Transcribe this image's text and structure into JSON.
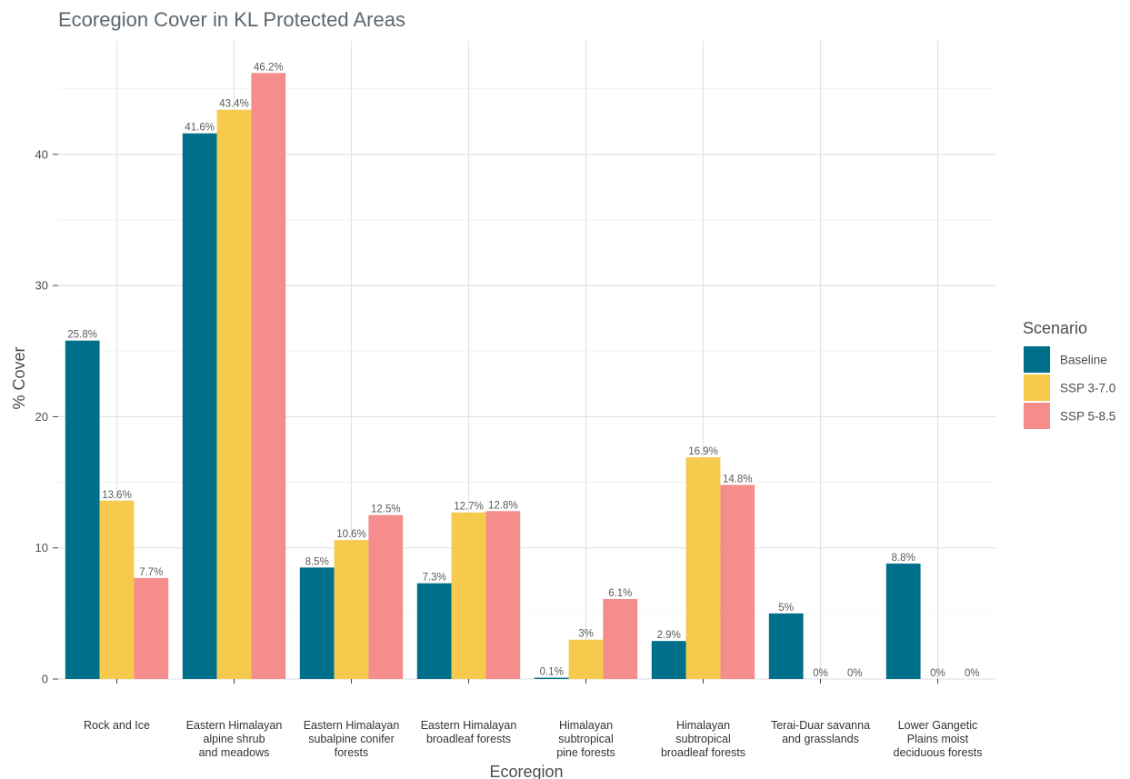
{
  "chart_data": {
    "type": "bar",
    "title": "Ecoregion Cover in KL Protected Areas",
    "xlabel": "Ecoregion",
    "ylabel": "% Cover",
    "ylim": [
      0,
      48
    ],
    "yticks": [
      0,
      10,
      20,
      30,
      40
    ],
    "grid": true,
    "legend_position": "right",
    "legend_title": "Scenario",
    "categories": [
      [
        "Rock and Ice"
      ],
      [
        "Eastern Himalayan",
        "alpine shrub",
        "and meadows"
      ],
      [
        "Eastern Himalayan",
        "subalpine conifer",
        "forests"
      ],
      [
        "Eastern Himalayan",
        "broadleaf forests"
      ],
      [
        "Himalayan",
        "subtropical",
        "pine forests"
      ],
      [
        "Himalayan",
        "subtropical",
        "broadleaf forests"
      ],
      [
        "Terai-Duar savanna",
        "and grasslands"
      ],
      [
        "Lower Gangetic",
        "Plains moist",
        "deciduous forests"
      ]
    ],
    "series": [
      {
        "name": "Baseline",
        "color": "#00708a",
        "values": [
          25.8,
          41.6,
          8.5,
          7.3,
          0.1,
          2.9,
          5,
          8.8
        ],
        "labels": [
          "25.8%",
          "41.6%",
          "8.5%",
          "7.3%",
          "0.1%",
          "2.9%",
          "5%",
          "8.8%"
        ]
      },
      {
        "name": "SSP 3-7.0",
        "color": "#f6ca4c",
        "values": [
          13.6,
          43.4,
          10.6,
          12.7,
          3,
          16.9,
          0,
          0
        ],
        "labels": [
          "13.6%",
          "43.4%",
          "10.6%",
          "12.7%",
          "3%",
          "16.9%",
          "0%",
          "0%"
        ]
      },
      {
        "name": "SSP 5-8.5",
        "color": "#f48d8b",
        "values": [
          7.7,
          46.2,
          12.5,
          12.8,
          6.1,
          14.8,
          0,
          0
        ],
        "labels": [
          "7.7%",
          "46.2%",
          "12.5%",
          "12.8%",
          "6.1%",
          "14.8%",
          "0%",
          "0%"
        ]
      }
    ]
  }
}
